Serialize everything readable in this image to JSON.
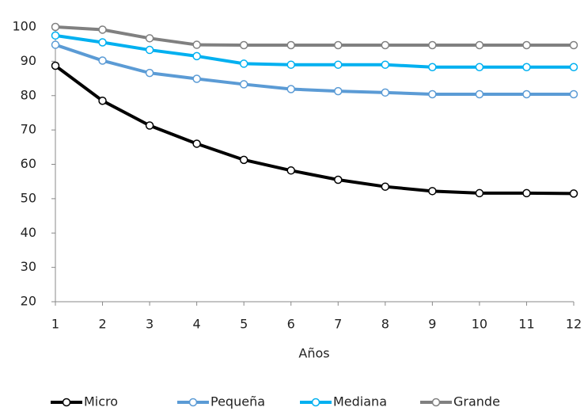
{
  "chart_data": {
    "type": "line",
    "x_label": "Años",
    "x": [
      1,
      2,
      3,
      4,
      5,
      6,
      7,
      8,
      9,
      10,
      11,
      12
    ],
    "xlim": [
      1,
      12
    ],
    "xticks": [
      1,
      2,
      3,
      4,
      5,
      6,
      7,
      8,
      9,
      10,
      11,
      12
    ],
    "ylim": [
      20,
      100
    ],
    "yticks": [
      20,
      30,
      40,
      50,
      60,
      70,
      80,
      90,
      100
    ],
    "grid": false,
    "legend": "bottom",
    "series": [
      {
        "name": "Micro",
        "color": "#000000",
        "values": [
          88.7,
          78.5,
          71.3,
          66.0,
          61.3,
          58.2,
          55.5,
          53.5,
          52.2,
          51.6,
          51.6,
          51.5
        ]
      },
      {
        "name": "Pequeña",
        "color": "#5b9bd5",
        "values": [
          94.8,
          90.2,
          86.6,
          84.9,
          83.3,
          81.9,
          81.3,
          80.9,
          80.4,
          80.4,
          80.4,
          80.4
        ]
      },
      {
        "name": "Mediana",
        "color": "#00b0f0",
        "values": [
          97.5,
          95.5,
          93.3,
          91.5,
          89.3,
          89.0,
          89.0,
          89.0,
          88.3,
          88.3,
          88.3,
          88.3
        ]
      },
      {
        "name": "Grande",
        "color": "#808080",
        "values": [
          100,
          99.2,
          96.7,
          94.8,
          94.7,
          94.7,
          94.7,
          94.7,
          94.7,
          94.7,
          94.7,
          94.7
        ]
      }
    ]
  }
}
